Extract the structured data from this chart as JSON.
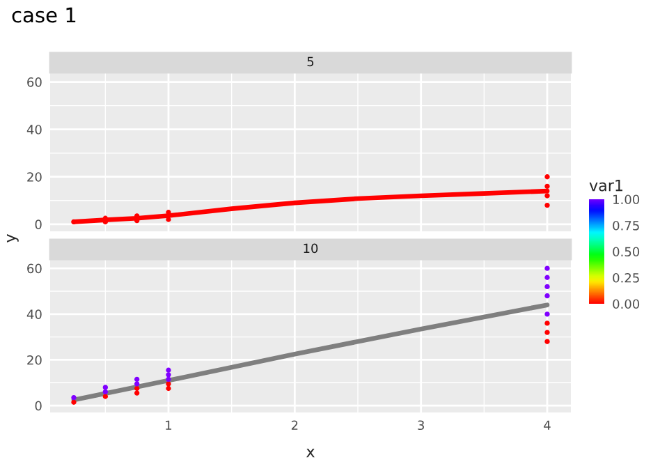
{
  "chart_data": [
    {
      "type": "scatter",
      "title": "case 1",
      "subtitle": "5",
      "ylabel": "y",
      "xlim": [
        0.0625,
        4.1875
      ],
      "ylim": [
        -3,
        64
      ],
      "yticks": [
        0,
        20,
        40,
        60
      ],
      "xticks": [
        1,
        2,
        3,
        4
      ],
      "tick_labels": "y",
      "grid": true,
      "series": [
        {
          "color": "#ff0000",
          "x": [
            0.25,
            0.5,
            0.5,
            0.75,
            0.75,
            1,
            1,
            4,
            4,
            4,
            4
          ],
          "values": [
            1,
            1,
            2.5,
            1.5,
            3.5,
            2,
            5,
            8,
            12,
            16,
            20
          ]
        },
        {
          "type": "line",
          "color": "#ff0000",
          "x": [
            0.25,
            0.5,
            0.75,
            1,
            1.5,
            2,
            2.5,
            3,
            3.5,
            4
          ],
          "values": [
            1,
            1.8,
            2.5,
            3.6,
            6.5,
            9,
            10.8,
            12,
            13,
            14
          ]
        }
      ]
    },
    {
      "type": "scatter",
      "subtitle": "10",
      "xlabel": "x",
      "clabel": "var1",
      "clim": [
        0,
        1
      ],
      "cticks": [
        {
          "value": 0,
          "label": "0.00"
        },
        {
          "value": 0.25,
          "label": "0.25"
        },
        {
          "value": 0.5,
          "label": "0.50"
        },
        {
          "value": 0.75,
          "label": "0.75"
        },
        {
          "value": 1,
          "label": "1.00"
        }
      ],
      "xlim": [
        0.0625,
        4.1875
      ],
      "ylim": [
        -3,
        64
      ],
      "yticks": [
        0,
        20,
        40,
        60
      ],
      "xticks": [
        1,
        2,
        3,
        4
      ],
      "grid": true,
      "series": [
        {
          "x": [
            0.25,
            0.25,
            0.5,
            0.5,
            0.5,
            0.75,
            0.75,
            0.75,
            0.75,
            1,
            1,
            1,
            1,
            1,
            4,
            4,
            4,
            4,
            4,
            4,
            4,
            4
          ],
          "values": [
            1.5,
            3.5,
            4,
            6,
            8,
            5.5,
            7.5,
            9.5,
            11.5,
            7.5,
            9.5,
            11.5,
            13.5,
            15.5,
            28,
            32,
            36,
            40,
            48,
            52,
            56,
            60
          ],
          "colors": [
            "#ff0000",
            "#8000ff",
            "#ff0000",
            "#8000ff",
            "#8000ff",
            "#ff0000",
            "#ff0000",
            "#8000ff",
            "#8000ff",
            "#ff0000",
            "#ff0000",
            "#8000ff",
            "#8000ff",
            "#8000ff",
            "#ff0000",
            "#ff0000",
            "#ff0000",
            "#8000ff",
            "#8000ff",
            "#8000ff",
            "#8000ff",
            "#8000ff"
          ]
        },
        {
          "type": "line",
          "color": "#7f7f7f",
          "x": [
            0.25,
            1,
            2,
            3,
            4
          ],
          "values": [
            2.5,
            11,
            22.5,
            33.5,
            44
          ]
        }
      ]
    }
  ]
}
